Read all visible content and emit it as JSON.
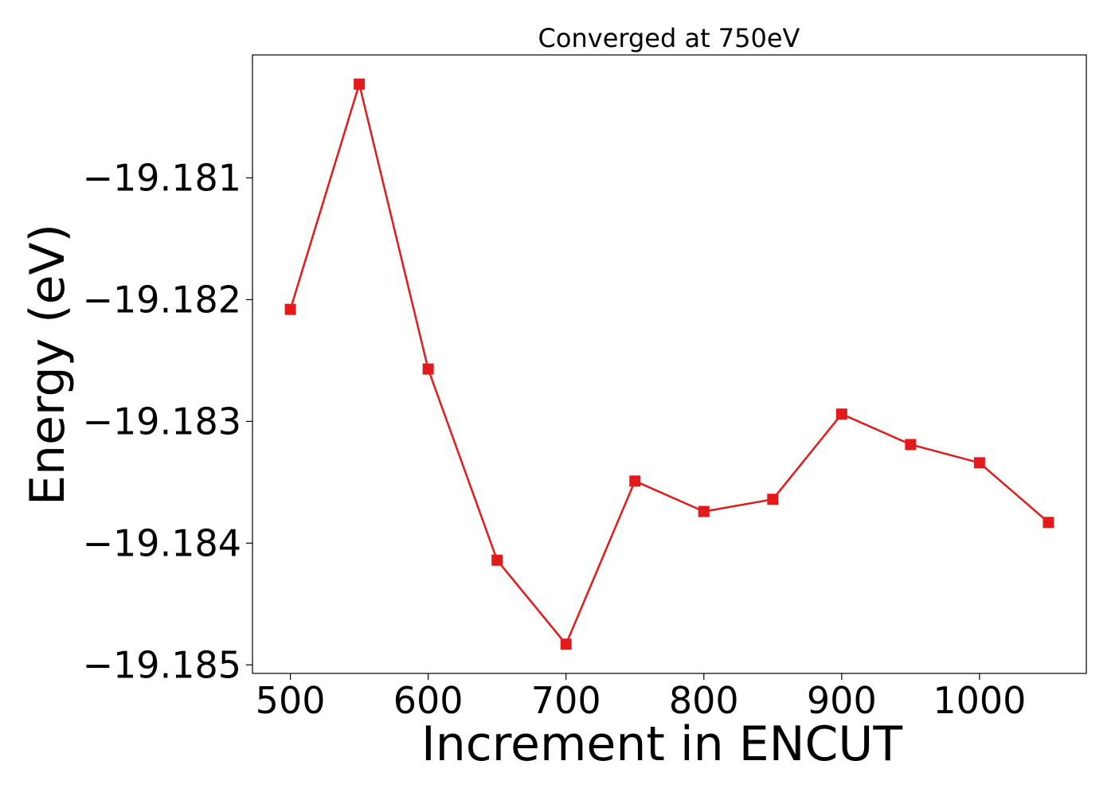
{
  "chart_data": {
    "type": "line",
    "title": "Converged at 750eV",
    "xlabel": "Increment in ENCUT",
    "ylabel": "Energy (eV)",
    "xlim": [
      472.5,
      1077.5
    ],
    "ylim": [
      -19.18507,
      -19.17999
    ],
    "xticks": [
      500,
      600,
      700,
      800,
      900,
      1000
    ],
    "xtick_labels": [
      "500",
      "600",
      "700",
      "800",
      "900",
      "1000"
    ],
    "yticks": [
      -19.181,
      -19.182,
      -19.183,
      -19.184,
      -19.185
    ],
    "ytick_labels": [
      "−19.181",
      "−19.182",
      "−19.183",
      "−19.184",
      "−19.185"
    ],
    "grid": false,
    "legend": false,
    "series": [
      {
        "color": "#e31a1c",
        "marker": "square",
        "x": [
          500,
          550,
          600,
          650,
          700,
          750,
          800,
          850,
          900,
          950,
          1000,
          1050
        ],
        "y": [
          -19.18208,
          -19.18023,
          -19.18257,
          -19.18414,
          -19.18483,
          -19.18349,
          -19.18374,
          -19.18364,
          -19.18294,
          -19.18319,
          -19.18334,
          -19.18383
        ]
      }
    ]
  }
}
